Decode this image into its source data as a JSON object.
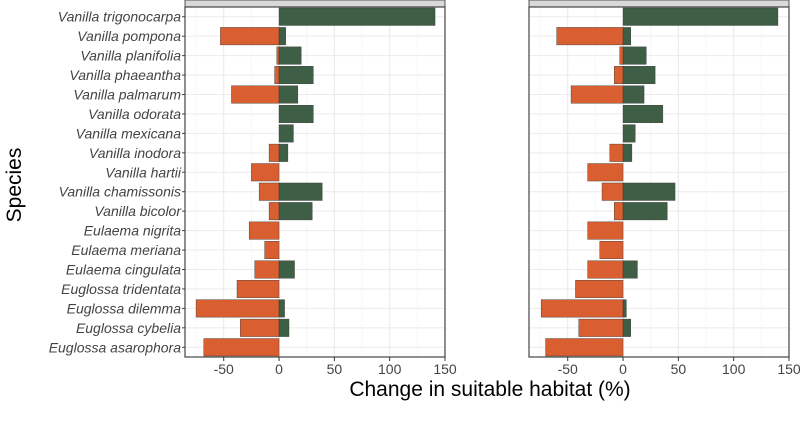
{
  "chart_data": {
    "type": "bar",
    "orientation": "horizontal",
    "ylabel": "Species",
    "xlabel": "Change in suitable habitat (%)",
    "xlim": [
      -85,
      150
    ],
    "xticks": [
      -50,
      0,
      50,
      100,
      150
    ],
    "xtick_labels": [
      "-50",
      "0",
      "50",
      "100",
      "150"
    ],
    "grid": true,
    "colors": {
      "loss": "#d95f30",
      "gain": "#3e5f45"
    },
    "categories": [
      "Vanilla trigonocarpa",
      "Vanilla pompona",
      "Vanilla planifolia",
      "Vanilla phaeantha",
      "Vanilla palmarum",
      "Vanilla odorata",
      "Vanilla mexicana",
      "Vanilla inodora",
      "Vanilla hartii",
      "Vanilla chamissonis",
      "Vanilla bicolor",
      "Eulaema nigrita",
      "Eulaema meriana",
      "Eulaema cingulata",
      "Euglossa tridentata",
      "Euglossa dilemma",
      "Euglossa cybelia",
      "Euglossa asarophora"
    ],
    "panels": [
      {
        "loss": [
          0,
          -53,
          -2,
          -4,
          -43,
          0,
          0,
          -9,
          -25,
          -18,
          -9,
          -27,
          -13,
          -22,
          -38,
          -75,
          -35,
          -68
        ],
        "gain": [
          141,
          6,
          20,
          31,
          17,
          31,
          13,
          8,
          0,
          39,
          30,
          0,
          0,
          14,
          0,
          5,
          9,
          0
        ]
      },
      {
        "loss": [
          0,
          -60,
          -3,
          -8,
          -47,
          0,
          0,
          -12,
          -32,
          -19,
          -8,
          -32,
          -21,
          -32,
          -43,
          -74,
          -40,
          -70
        ],
        "gain": [
          140,
          7,
          21,
          29,
          19,
          36,
          11,
          8,
          0,
          47,
          40,
          0,
          0,
          13,
          0,
          3,
          7,
          0
        ]
      }
    ]
  }
}
